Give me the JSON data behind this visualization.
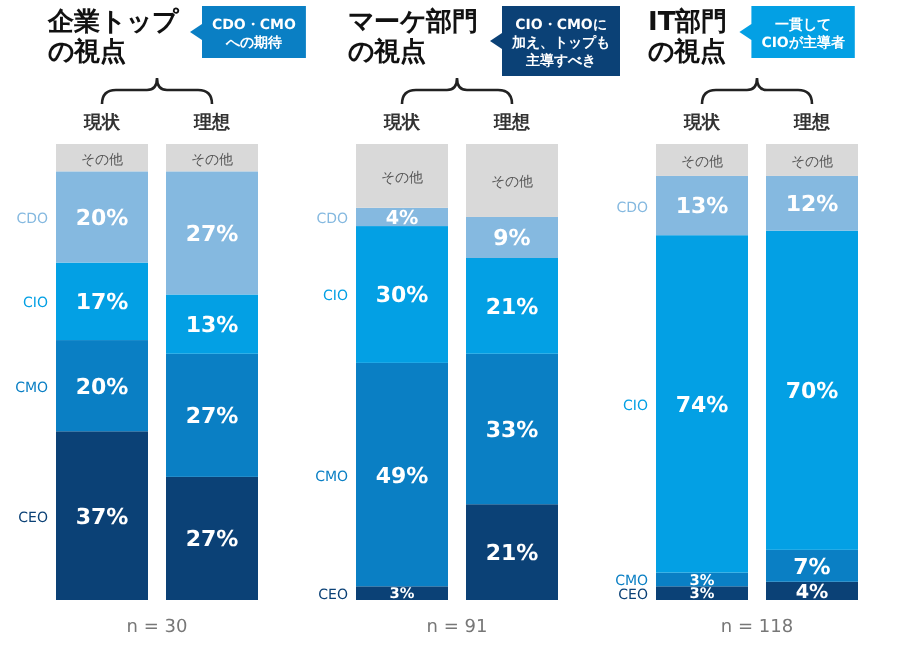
{
  "chart_data": [
    {
      "type": "bar",
      "stacked": true,
      "title": "企業トップの視点",
      "categories": [
        "現状",
        "理想"
      ],
      "ylim": [
        0,
        100
      ],
      "tick_labels": "x",
      "annotations": [
        "CDO・CMO",
        "への期待",
        "n = 30"
      ],
      "series": [
        {
          "name": "CEO",
          "color": "#0b4176",
          "values": [
            37,
            27
          ],
          "value_labels": [
            "37%",
            "27%"
          ]
        },
        {
          "name": "CMO",
          "color": "#0a7fc4",
          "values": [
            20,
            27
          ],
          "value_labels": [
            "20%",
            "27%"
          ]
        },
        {
          "name": "CIO",
          "color": "#03a0e4",
          "values": [
            17,
            13
          ],
          "value_labels": [
            "17%",
            "13%"
          ]
        },
        {
          "name": "CDO",
          "color": "#85b9e0",
          "values": [
            20,
            27
          ],
          "value_labels": [
            "20%",
            "27%"
          ]
        },
        {
          "name": "その他",
          "color": "#d9d9d9",
          "values": [
            6,
            6
          ],
          "value_labels": [
            null,
            null
          ]
        }
      ]
    },
    {
      "type": "bar",
      "stacked": true,
      "title": "マーケ部門の視点",
      "categories": [
        "現状",
        "理想"
      ],
      "ylim": [
        0,
        100
      ],
      "tick_labels": "x",
      "annotations": [
        "CIO・CMOに",
        "加え、トップも",
        "主導すべき",
        "n = 91"
      ],
      "series": [
        {
          "name": "CEO",
          "color": "#0b4176",
          "values": [
            3,
            21
          ],
          "value_labels": [
            "3%",
            "21%"
          ]
        },
        {
          "name": "CMO",
          "color": "#0a7fc4",
          "values": [
            49,
            33
          ],
          "value_labels": [
            "49%",
            "33%"
          ]
        },
        {
          "name": "CIO",
          "color": "#03a0e4",
          "values": [
            30,
            21
          ],
          "value_labels": [
            "30%",
            "21%"
          ]
        },
        {
          "name": "CDO",
          "color": "#85b9e0",
          "values": [
            4,
            9
          ],
          "value_labels": [
            "4%",
            "9%"
          ]
        },
        {
          "name": "その他",
          "color": "#d9d9d9",
          "values": [
            14,
            16
          ],
          "value_labels": [
            null,
            null
          ]
        }
      ]
    },
    {
      "type": "bar",
      "stacked": true,
      "title": "IT部門の視点",
      "categories": [
        "現状",
        "理想"
      ],
      "ylim": [
        0,
        100
      ],
      "tick_labels": "x",
      "annotations": [
        "一貫して",
        "CIOが主導者",
        "n = 118"
      ],
      "series": [
        {
          "name": "CEO",
          "color": "#0b4176",
          "values": [
            3,
            4
          ],
          "value_labels": [
            "3%",
            "4%"
          ]
        },
        {
          "name": "CMO",
          "color": "#0a7fc4",
          "values": [
            3,
            7
          ],
          "value_labels": [
            "3%",
            "7%"
          ]
        },
        {
          "name": "CIO",
          "color": "#03a0e4",
          "values": [
            74,
            70
          ],
          "value_labels": [
            "74%",
            "70%"
          ]
        },
        {
          "name": "CDO",
          "color": "#85b9e0",
          "values": [
            13,
            12
          ],
          "value_labels": [
            "13%",
            "12%"
          ]
        },
        {
          "name": "その他",
          "color": "#d9d9d9",
          "values": [
            7,
            7
          ],
          "value_labels": [
            null,
            null
          ]
        }
      ]
    }
  ]
}
